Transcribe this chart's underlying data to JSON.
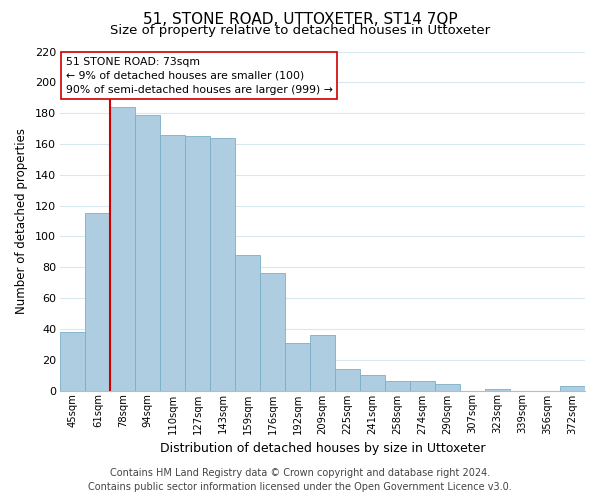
{
  "title": "51, STONE ROAD, UTTOXETER, ST14 7QP",
  "subtitle": "Size of property relative to detached houses in Uttoxeter",
  "xlabel": "Distribution of detached houses by size in Uttoxeter",
  "ylabel": "Number of detached properties",
  "footer_line1": "Contains HM Land Registry data © Crown copyright and database right 2024.",
  "footer_line2": "Contains public sector information licensed under the Open Government Licence v3.0.",
  "bar_labels": [
    "45sqm",
    "61sqm",
    "78sqm",
    "94sqm",
    "110sqm",
    "127sqm",
    "143sqm",
    "159sqm",
    "176sqm",
    "192sqm",
    "209sqm",
    "225sqm",
    "241sqm",
    "258sqm",
    "274sqm",
    "290sqm",
    "307sqm",
    "323sqm",
    "339sqm",
    "356sqm",
    "372sqm"
  ],
  "bar_values": [
    38,
    115,
    184,
    179,
    166,
    165,
    164,
    88,
    76,
    31,
    36,
    14,
    10,
    6,
    6,
    4,
    0,
    1,
    0,
    0,
    3
  ],
  "bar_color": "#aecde1",
  "bar_edge_color": "#7aafc8",
  "vline_color": "#cc0000",
  "annotation_title": "51 STONE ROAD: 73sqm",
  "annotation_line1": "← 9% of detached houses are smaller (100)",
  "annotation_line2": "90% of semi-detached houses are larger (999) →",
  "annotation_box_facecolor": "#ffffff",
  "annotation_box_edgecolor": "#cc0000",
  "ylim": [
    0,
    220
  ],
  "yticks": [
    0,
    20,
    40,
    60,
    80,
    100,
    120,
    140,
    160,
    180,
    200,
    220
  ],
  "background_color": "#ffffff",
  "grid_color": "#d8e8f0",
  "title_fontsize": 11,
  "subtitle_fontsize": 9.5,
  "footer_fontsize": 7
}
